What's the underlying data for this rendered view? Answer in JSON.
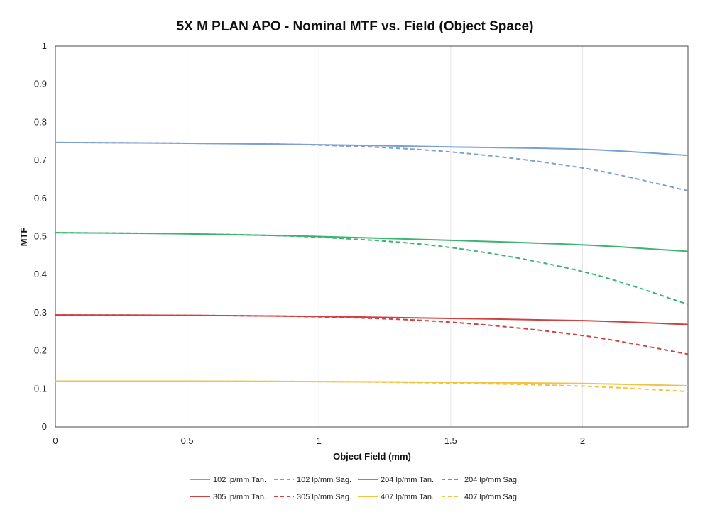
{
  "chart_data": {
    "type": "line",
    "title": "5X M PLAN APO - Nominal MTF vs. Field (Object Space)",
    "xlabel": "Object Field (mm)",
    "ylabel": "MTF",
    "xlim": [
      0,
      2.4
    ],
    "ylim": [
      0,
      1
    ],
    "xticks": [
      "0",
      "0.5",
      "1",
      "1.5",
      "2"
    ],
    "xtick_values": [
      0,
      0.5,
      1,
      1.5,
      2
    ],
    "yticks": [
      "0",
      "0.1",
      "0.2",
      "0.3",
      "0.4",
      "0.5",
      "0.6",
      "0.7",
      "0.8",
      "0.9",
      "1"
    ],
    "ytick_values": [
      0,
      0.1,
      0.2,
      0.3,
      0.4,
      0.5,
      0.6,
      0.7,
      0.8,
      0.9,
      1
    ],
    "grid": "vertical",
    "legend_position": "bottom",
    "x": [
      0,
      0.5,
      1.0,
      1.5,
      2.0,
      2.4
    ],
    "series": [
      {
        "name": "102 lp/mm Tan.",
        "color": "#7a9fd0",
        "dash": "solid",
        "values": [
          0.747,
          0.745,
          0.741,
          0.735,
          0.729,
          0.713
        ]
      },
      {
        "name": "102 lp/mm Sag.",
        "color": "#7a9fd0",
        "dash": "dashed",
        "values": [
          0.747,
          0.745,
          0.74,
          0.722,
          0.68,
          0.62
        ]
      },
      {
        "name": "204 lp/mm Tan.",
        "color": "#3cb371",
        "dash": "solid",
        "values": [
          0.51,
          0.507,
          0.5,
          0.49,
          0.478,
          0.461
        ]
      },
      {
        "name": "204 lp/mm Sag.",
        "color": "#3cb371",
        "dash": "dashed",
        "values": [
          0.51,
          0.507,
          0.498,
          0.471,
          0.408,
          0.322
        ]
      },
      {
        "name": "305 lp/mm Tan.",
        "color": "#d04040",
        "dash": "solid",
        "values": [
          0.294,
          0.293,
          0.29,
          0.285,
          0.279,
          0.269
        ]
      },
      {
        "name": "305 lp/mm Sag.",
        "color": "#d04040",
        "dash": "dashed",
        "values": [
          0.294,
          0.293,
          0.289,
          0.275,
          0.24,
          0.191
        ]
      },
      {
        "name": "407 lp/mm Tan.",
        "color": "#f2c240",
        "dash": "solid",
        "values": [
          0.12,
          0.12,
          0.119,
          0.117,
          0.114,
          0.108
        ]
      },
      {
        "name": "407 lp/mm Sag.",
        "color": "#f2c240",
        "dash": "dashed",
        "values": [
          0.12,
          0.12,
          0.119,
          0.115,
          0.107,
          0.093
        ]
      }
    ]
  }
}
